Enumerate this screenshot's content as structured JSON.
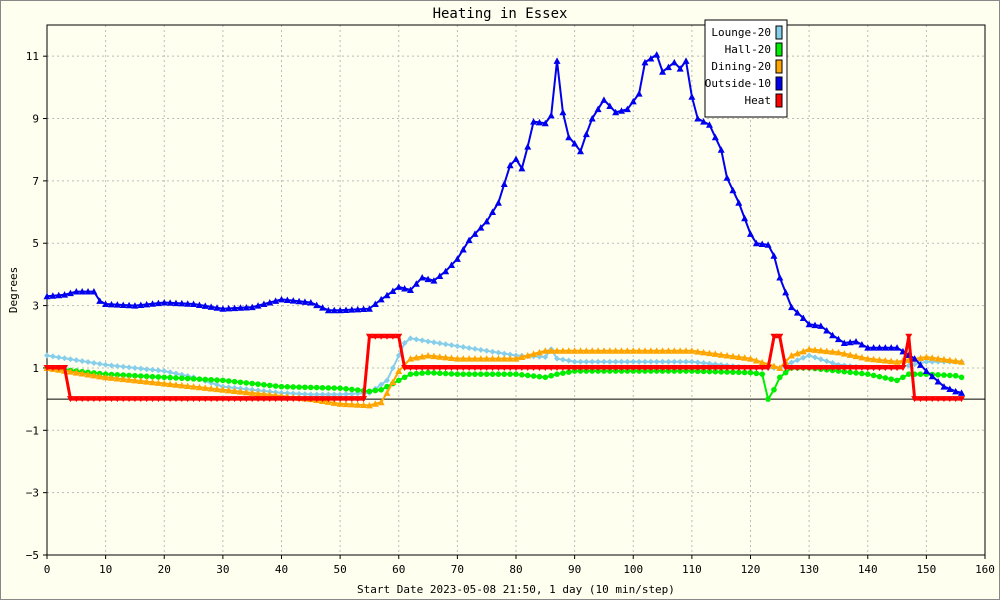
{
  "chart_data": {
    "type": "line",
    "title": "Heating in Essex",
    "xlabel": "Start Date 2023-05-08 21:50, 1 day (10 min/step)",
    "ylabel": "Degrees",
    "xlim": [
      0,
      160
    ],
    "ylim": [
      -5,
      12
    ],
    "x_ticks": [
      0,
      10,
      20,
      30,
      40,
      50,
      60,
      70,
      80,
      90,
      100,
      110,
      120,
      130,
      140,
      150,
      160
    ],
    "y_ticks": [
      -5,
      -3,
      -1,
      1,
      3,
      5,
      7,
      9,
      11
    ],
    "grid": true,
    "legend_position": "top-right",
    "series": [
      {
        "name": "Lounge-20",
        "color": "#87ceeb",
        "marker": "diamond",
        "points": [
          [
            0,
            1.4
          ],
          [
            5,
            1.25
          ],
          [
            10,
            1.1
          ],
          [
            15,
            1.0
          ],
          [
            20,
            0.9
          ],
          [
            25,
            0.7
          ],
          [
            30,
            0.4
          ],
          [
            35,
            0.3
          ],
          [
            40,
            0.2
          ],
          [
            45,
            0.15
          ],
          [
            50,
            0.15
          ],
          [
            55,
            0.2
          ],
          [
            58,
            0.6
          ],
          [
            60,
            1.4
          ],
          [
            61,
            1.8
          ],
          [
            62,
            1.95
          ],
          [
            65,
            1.85
          ],
          [
            70,
            1.7
          ],
          [
            75,
            1.55
          ],
          [
            80,
            1.4
          ],
          [
            85,
            1.35
          ],
          [
            86,
            1.6
          ],
          [
            87,
            1.3
          ],
          [
            90,
            1.2
          ],
          [
            100,
            1.2
          ],
          [
            110,
            1.2
          ],
          [
            120,
            1.0
          ],
          [
            125,
            1.0
          ],
          [
            126,
            1.1
          ],
          [
            130,
            1.4
          ],
          [
            135,
            1.1
          ],
          [
            140,
            1.0
          ],
          [
            145,
            1.0
          ],
          [
            150,
            1.2
          ],
          [
            156,
            1.2
          ]
        ]
      },
      {
        "name": "Hall-20",
        "color": "#00ee00",
        "marker": "circle",
        "points": [
          [
            0,
            1.0
          ],
          [
            10,
            0.8
          ],
          [
            20,
            0.7
          ],
          [
            30,
            0.6
          ],
          [
            40,
            0.4
          ],
          [
            50,
            0.35
          ],
          [
            55,
            0.25
          ],
          [
            57,
            0.3
          ],
          [
            60,
            0.6
          ],
          [
            62,
            0.8
          ],
          [
            65,
            0.85
          ],
          [
            70,
            0.8
          ],
          [
            80,
            0.8
          ],
          [
            85,
            0.7
          ],
          [
            87,
            0.8
          ],
          [
            90,
            0.9
          ],
          [
            100,
            0.9
          ],
          [
            110,
            0.9
          ],
          [
            120,
            0.85
          ],
          [
            122,
            0.8
          ],
          [
            123,
            0.0
          ],
          [
            124,
            0.3
          ],
          [
            125,
            0.7
          ],
          [
            127,
            1.0
          ],
          [
            130,
            1.0
          ],
          [
            140,
            0.8
          ],
          [
            145,
            0.6
          ],
          [
            147,
            0.8
          ],
          [
            150,
            0.8
          ],
          [
            155,
            0.75
          ],
          [
            156,
            0.7
          ]
        ]
      },
      {
        "name": "Dining-20",
        "color": "#ffa500",
        "marker": "triangle",
        "points": [
          [
            0,
            1.0
          ],
          [
            10,
            0.7
          ],
          [
            20,
            0.5
          ],
          [
            30,
            0.3
          ],
          [
            40,
            0.1
          ],
          [
            45,
            0.0
          ],
          [
            50,
            -0.15
          ],
          [
            55,
            -0.2
          ],
          [
            57,
            -0.1
          ],
          [
            58,
            0.2
          ],
          [
            60,
            0.9
          ],
          [
            62,
            1.3
          ],
          [
            65,
            1.4
          ],
          [
            70,
            1.3
          ],
          [
            80,
            1.3
          ],
          [
            85,
            1.55
          ],
          [
            90,
            1.55
          ],
          [
            100,
            1.55
          ],
          [
            110,
            1.55
          ],
          [
            120,
            1.3
          ],
          [
            125,
            1.0
          ],
          [
            127,
            1.4
          ],
          [
            130,
            1.6
          ],
          [
            135,
            1.5
          ],
          [
            140,
            1.3
          ],
          [
            145,
            1.2
          ],
          [
            150,
            1.35
          ],
          [
            156,
            1.2
          ]
        ]
      },
      {
        "name": "Outside-10",
        "color": "#0000ee",
        "marker": "triangle",
        "points": [
          [
            0,
            3.3
          ],
          [
            3,
            3.35
          ],
          [
            5,
            3.45
          ],
          [
            8,
            3.45
          ],
          [
            9,
            3.15
          ],
          [
            10,
            3.05
          ],
          [
            15,
            3.0
          ],
          [
            20,
            3.1
          ],
          [
            25,
            3.05
          ],
          [
            30,
            2.9
          ],
          [
            35,
            2.95
          ],
          [
            40,
            3.2
          ],
          [
            45,
            3.1
          ],
          [
            48,
            2.85
          ],
          [
            50,
            2.85
          ],
          [
            55,
            2.9
          ],
          [
            57,
            3.2
          ],
          [
            60,
            3.6
          ],
          [
            62,
            3.5
          ],
          [
            64,
            3.9
          ],
          [
            66,
            3.8
          ],
          [
            68,
            4.1
          ],
          [
            70,
            4.5
          ],
          [
            72,
            5.1
          ],
          [
            75,
            5.7
          ],
          [
            77,
            6.3
          ],
          [
            79,
            7.5
          ],
          [
            80,
            7.7
          ],
          [
            81,
            7.4
          ],
          [
            82,
            8.1
          ],
          [
            83,
            8.9
          ],
          [
            85,
            8.85
          ],
          [
            86,
            9.1
          ],
          [
            87,
            10.85
          ],
          [
            88,
            9.2
          ],
          [
            89,
            8.4
          ],
          [
            90,
            8.2
          ],
          [
            91,
            7.95
          ],
          [
            92,
            8.5
          ],
          [
            93,
            9.0
          ],
          [
            95,
            9.6
          ],
          [
            97,
            9.2
          ],
          [
            99,
            9.3
          ],
          [
            101,
            9.8
          ],
          [
            102,
            10.8
          ],
          [
            104,
            11.05
          ],
          [
            105,
            10.5
          ],
          [
            107,
            10.8
          ],
          [
            108,
            10.6
          ],
          [
            109,
            10.85
          ],
          [
            110,
            9.7
          ],
          [
            111,
            9.0
          ],
          [
            113,
            8.8
          ],
          [
            115,
            8.0
          ],
          [
            116,
            7.1
          ],
          [
            118,
            6.3
          ],
          [
            120,
            5.3
          ],
          [
            121,
            5.0
          ],
          [
            123,
            4.95
          ],
          [
            124,
            4.6
          ],
          [
            125,
            3.9
          ],
          [
            127,
            2.95
          ],
          [
            129,
            2.6
          ],
          [
            130,
            2.4
          ],
          [
            132,
            2.35
          ],
          [
            134,
            2.05
          ],
          [
            136,
            1.8
          ],
          [
            138,
            1.85
          ],
          [
            140,
            1.65
          ],
          [
            145,
            1.65
          ],
          [
            148,
            1.3
          ],
          [
            150,
            0.9
          ],
          [
            153,
            0.4
          ],
          [
            155,
            0.25
          ],
          [
            156,
            0.2
          ]
        ]
      },
      {
        "name": "Heat",
        "color": "#ff0000",
        "marker": "triangle-down",
        "points": [
          [
            0,
            1.0
          ],
          [
            3,
            1.0
          ],
          [
            4,
            0.0
          ],
          [
            54,
            0.0
          ],
          [
            55,
            2.0
          ],
          [
            60,
            2.0
          ],
          [
            61,
            1.0
          ],
          [
            123,
            1.0
          ],
          [
            124,
            2.0
          ],
          [
            125,
            2.0
          ],
          [
            126,
            1.0
          ],
          [
            146,
            1.0
          ],
          [
            147,
            2.0
          ],
          [
            148,
            0.0
          ],
          [
            156,
            0.0
          ]
        ]
      }
    ]
  }
}
